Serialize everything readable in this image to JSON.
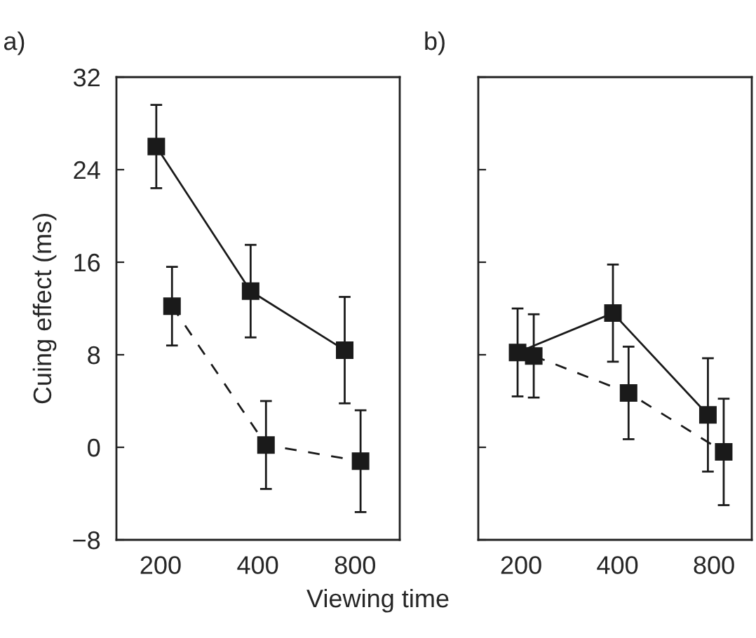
{
  "chart_data": [
    {
      "type": "line",
      "title": "a)",
      "xlabel": "Viewing time",
      "ylabel": "Cuing effect (ms)",
      "log": "x",
      "xlim": [
        146,
        1100
      ],
      "xticks": [
        200,
        400,
        800
      ],
      "ylim": [
        -8,
        32
      ],
      "yticks": [
        {
          "value": -8,
          "label": "−8"
        },
        0,
        8,
        16,
        24,
        32
      ],
      "grid": false,
      "legend": false,
      "marker": "square",
      "series": [
        {
          "color": "#1a1a1a",
          "line_style": "solid",
          "x": [
            194,
            380,
            743
          ],
          "values": [
            26.0,
            13.5,
            8.4
          ],
          "errors": [
            3.6,
            4.0,
            4.6
          ]
        },
        {
          "color": "#1a1a1a",
          "line_style": "dashed",
          "x": [
            217,
            424,
            832
          ],
          "values": [
            12.2,
            0.2,
            -1.2
          ],
          "errors": [
            3.4,
            3.8,
            4.4
          ]
        }
      ]
    },
    {
      "type": "line",
      "title": "b)",
      "log": "x",
      "xlim": [
        147,
        1050
      ],
      "xticks": [
        200,
        400,
        800
      ],
      "ylim": [
        -8,
        32
      ],
      "yticks": [
        -8,
        0,
        8,
        16,
        24,
        32
      ],
      "tick_labels": "x",
      "grid": false,
      "legend": false,
      "marker": "square",
      "series": [
        {
          "color": "#1a1a1a",
          "line_style": "solid",
          "x": [
            195,
            387,
            766
          ],
          "values": [
            8.2,
            11.6,
            2.8
          ],
          "errors": [
            3.8,
            4.2,
            4.9
          ]
        },
        {
          "color": "#1a1a1a",
          "line_style": "dashed",
          "x": [
            219,
            433,
            858
          ],
          "values": [
            7.9,
            4.7,
            -0.4
          ],
          "errors": [
            3.6,
            4.0,
            4.6
          ]
        }
      ]
    }
  ]
}
